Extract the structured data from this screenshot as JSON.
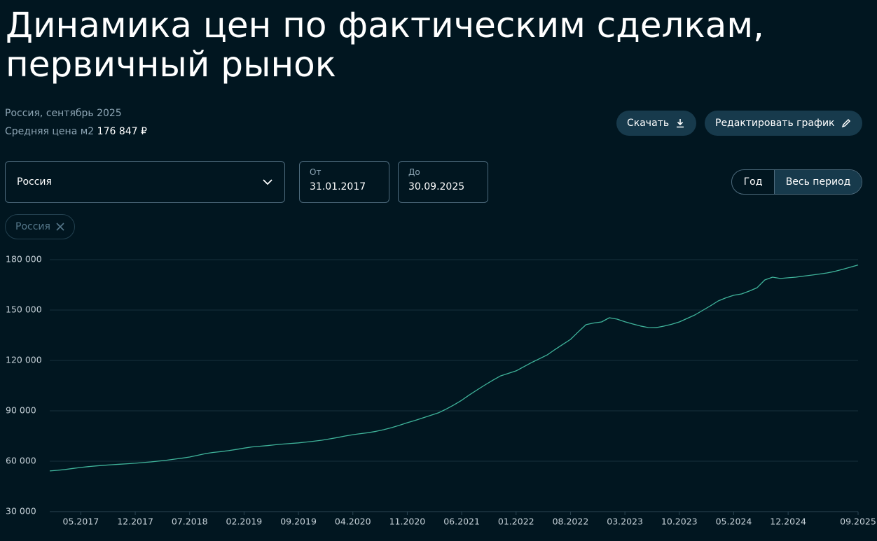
{
  "header": {
    "title": "Динамика цен по фактическим сделкам, первичный рынок",
    "region_period": "Россия, сентябрь 2025",
    "avg_price_label": "Средняя цена м2",
    "avg_price_value": "176 847 ₽"
  },
  "buttons": {
    "download": "Скачать",
    "edit": "Редактировать график"
  },
  "filters": {
    "region_select": "Россия",
    "from_label": "От",
    "from_value": "31.01.2017",
    "to_label": "До",
    "to_value": "30.09.2025",
    "period_options": [
      "Год",
      "Весь период"
    ],
    "chip": "Россия"
  },
  "chart_data": {
    "type": "line",
    "color": "#3fb39a",
    "grid": true,
    "categories": [
      null,
      null,
      null,
      null,
      "05.2017",
      null,
      null,
      null,
      null,
      null,
      null,
      "12.2017",
      null,
      null,
      null,
      null,
      null,
      null,
      "07.2018",
      null,
      null,
      null,
      null,
      null,
      null,
      "02.2019",
      null,
      null,
      null,
      null,
      null,
      null,
      "09.2019",
      null,
      null,
      null,
      null,
      null,
      null,
      "04.2020",
      null,
      null,
      null,
      null,
      null,
      null,
      "11.2020",
      null,
      null,
      null,
      null,
      null,
      null,
      "06.2021",
      null,
      null,
      null,
      null,
      null,
      null,
      "01.2022",
      null,
      null,
      null,
      null,
      null,
      null,
      "08.2022",
      null,
      null,
      null,
      null,
      null,
      null,
      "03.2023",
      null,
      null,
      null,
      null,
      null,
      null,
      "10.2023",
      null,
      null,
      null,
      null,
      null,
      null,
      "05.2024",
      null,
      null,
      null,
      null,
      null,
      null,
      "12.2024",
      null,
      null,
      null,
      null,
      null,
      null,
      null,
      null,
      "09.2025"
    ],
    "values": [
      54200,
      54600,
      55100,
      55700,
      56300,
      56800,
      57200,
      57600,
      57900,
      58200,
      58500,
      58800,
      59200,
      59600,
      60100,
      60600,
      61200,
      61800,
      62500,
      63500,
      64500,
      65200,
      65700,
      66300,
      67000,
      67800,
      68500,
      68900,
      69300,
      69800,
      70200,
      70600,
      70900,
      71400,
      71900,
      72500,
      73300,
      74100,
      75000,
      75800,
      76400,
      77000,
      77800,
      78800,
      80000,
      81400,
      82900,
      84300,
      85800,
      87300,
      88800,
      91000,
      93500,
      96300,
      99500,
      102500,
      105400,
      108200,
      110800,
      112300,
      113800,
      116300,
      118800,
      121000,
      123300,
      126500,
      129500,
      132500,
      137000,
      141300,
      142300,
      142900,
      145400,
      144600,
      143000,
      141700,
      140500,
      139600,
      139500,
      140400,
      141500,
      142900,
      145000,
      147100,
      149800,
      152500,
      155400,
      157300,
      158800,
      159600,
      161300,
      163300,
      167900,
      169600,
      168800,
      169200,
      169600,
      170200,
      170800,
      171400,
      172100,
      173000,
      174200,
      175500,
      176847
    ],
    "ylim": [
      30000,
      180000
    ],
    "yticks": [
      {
        "value": 30000,
        "label": "30 000"
      },
      {
        "value": 60000,
        "label": "60 000"
      },
      {
        "value": 90000,
        "label": "90 000"
      },
      {
        "value": 120000,
        "label": "120 000"
      },
      {
        "value": 150000,
        "label": "150 000"
      },
      {
        "value": 180000,
        "label": "180 000"
      }
    ]
  }
}
